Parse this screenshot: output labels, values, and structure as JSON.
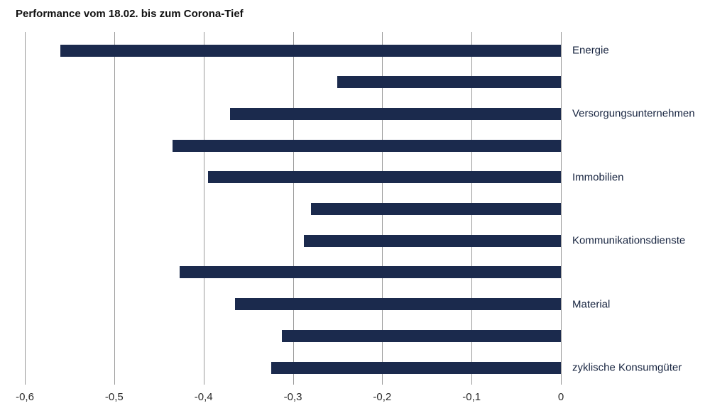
{
  "title": "Performance vom 18.02. bis zum Corona-Tief",
  "chart_data": {
    "type": "bar",
    "orientation": "horizontal",
    "title": "Performance vom 18.02. bis zum Corona-Tief",
    "xlim": [
      -0.6,
      0
    ],
    "x_ticks": [
      "-0,6",
      "-0,5",
      "-0,4",
      "-0,3",
      "-0,2",
      "-0,1",
      "0"
    ],
    "grid": "vertical",
    "legend": "none",
    "bar_color": "#1b2a4d",
    "bars": [
      {
        "label": "Energie",
        "value": -0.56
      },
      {
        "label": "",
        "value": -0.25
      },
      {
        "label": "Versorgungsunternehmen",
        "value": -0.37
      },
      {
        "label": "",
        "value": -0.435
      },
      {
        "label": "Immobilien",
        "value": -0.395
      },
      {
        "label": "",
        "value": -0.28
      },
      {
        "label": "Kommunikationsdienste",
        "value": -0.288
      },
      {
        "label": "",
        "value": -0.427
      },
      {
        "label": "Material",
        "value": -0.365
      },
      {
        "label": "",
        "value": -0.312
      },
      {
        "label": "zyklische Konsumgüter",
        "value": -0.324
      }
    ]
  }
}
